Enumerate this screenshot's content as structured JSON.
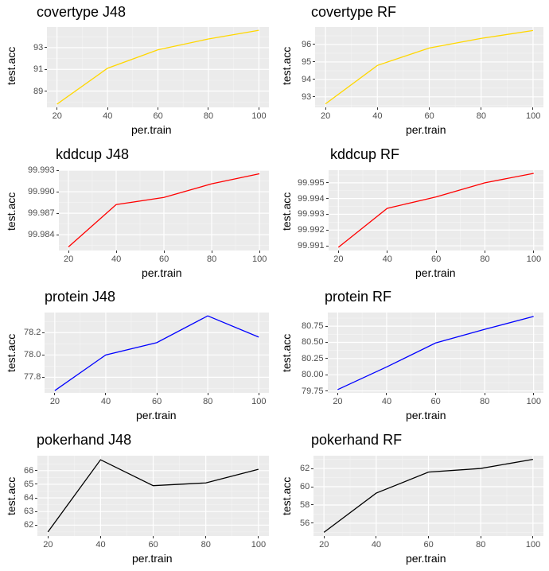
{
  "chart_data": [
    {
      "type": "line",
      "title": "covertype J48",
      "xlabel": "per.train",
      "ylabel": "test.acc",
      "color": "#FFD700",
      "x": [
        20,
        40,
        60,
        80,
        100
      ],
      "values": [
        87.8,
        91.1,
        92.8,
        93.8,
        94.6
      ],
      "xlim": [
        16,
        104
      ],
      "ylim": [
        87.5,
        94.9
      ],
      "yticks": [
        89,
        91,
        93
      ],
      "xticks": [
        20,
        40,
        60,
        80,
        100
      ],
      "grid": true
    },
    {
      "type": "line",
      "title": "covertype RF",
      "xlabel": "per.train",
      "ylabel": "test.acc",
      "color": "#FFD700",
      "x": [
        20,
        40,
        60,
        80,
        100
      ],
      "values": [
        92.6,
        94.8,
        95.8,
        96.35,
        96.8
      ],
      "xlim": [
        16,
        104
      ],
      "ylim": [
        92.4,
        97.0
      ],
      "yticks": [
        "93",
        "94",
        "95",
        "96"
      ],
      "xticks": [
        20,
        40,
        60,
        80,
        100
      ],
      "grid": true
    },
    {
      "type": "line",
      "title": "kddcup J48",
      "xlabel": "per.train",
      "ylabel": "test.acc",
      "color": "#FF0000",
      "x": [
        20,
        40,
        60,
        80,
        100
      ],
      "values": [
        99.9823,
        99.9882,
        99.9892,
        99.9911,
        99.9925
      ],
      "xlim": [
        16,
        104
      ],
      "ylim": [
        99.9818,
        99.993
      ],
      "yticks": [
        "99.984",
        "99.987",
        "99.990",
        "99.993"
      ],
      "xticks": [
        20,
        40,
        60,
        80,
        100
      ],
      "grid": true
    },
    {
      "type": "line",
      "title": "kddcup RF",
      "xlabel": "per.train",
      "ylabel": "test.acc",
      "color": "#FF0000",
      "x": [
        20,
        40,
        60,
        80,
        100
      ],
      "values": [
        99.9909,
        99.99338,
        99.9941,
        99.995,
        99.9956
      ],
      "xlim": [
        16,
        104
      ],
      "ylim": [
        99.9907,
        99.9958
      ],
      "yticks": [
        "99.991",
        "99.992",
        "99.993",
        "99.994",
        "99.995"
      ],
      "xticks": [
        20,
        40,
        60,
        80,
        100
      ],
      "grid": true
    },
    {
      "type": "line",
      "title": "protein J48",
      "xlabel": "per.train",
      "ylabel": "test.acc",
      "color": "#0000FF",
      "x": [
        20,
        40,
        60,
        80,
        100
      ],
      "values": [
        77.68,
        78.0,
        78.11,
        78.35,
        78.16
      ],
      "xlim": [
        16,
        104
      ],
      "ylim": [
        77.66,
        78.38
      ],
      "yticks": [
        "77.8",
        "78.0",
        "78.2"
      ],
      "xticks": [
        20,
        40,
        60,
        80,
        100
      ],
      "grid": true
    },
    {
      "type": "line",
      "title": "protein RF",
      "xlabel": "per.train",
      "ylabel": "test.acc",
      "color": "#0000FF",
      "x": [
        20,
        40,
        60,
        80,
        100
      ],
      "values": [
        79.77,
        80.12,
        80.49,
        80.7,
        80.9
      ],
      "xlim": [
        16,
        104
      ],
      "ylim": [
        79.72,
        80.96
      ],
      "yticks": [
        "79.75",
        "80.00",
        "80.25",
        "80.50",
        "80.75"
      ],
      "xticks": [
        20,
        40,
        60,
        80,
        100
      ],
      "grid": true
    },
    {
      "type": "line",
      "title": "pokerhand J48",
      "xlabel": "per.train",
      "ylabel": "test.acc",
      "color": "#000000",
      "x": [
        20,
        40,
        60,
        80,
        100
      ],
      "values": [
        61.5,
        66.8,
        64.9,
        65.1,
        66.1
      ],
      "xlim": [
        16,
        104
      ],
      "ylim": [
        61.2,
        67.1
      ],
      "yticks": [
        "62",
        "63",
        "64",
        "65",
        "66"
      ],
      "xticks": [
        20,
        40,
        60,
        80,
        100
      ],
      "grid": true
    },
    {
      "type": "line",
      "title": "pokerhand RF",
      "xlabel": "per.train",
      "ylabel": "test.acc",
      "color": "#000000",
      "x": [
        20,
        40,
        60,
        80,
        100
      ],
      "values": [
        55.0,
        59.3,
        61.6,
        62.0,
        63.0
      ],
      "xlim": [
        16,
        104
      ],
      "ylim": [
        54.6,
        63.4
      ],
      "yticks": [
        "56",
        "58",
        "60",
        "62"
      ],
      "xticks": [
        20,
        40,
        60,
        80,
        100
      ],
      "grid": true
    }
  ]
}
